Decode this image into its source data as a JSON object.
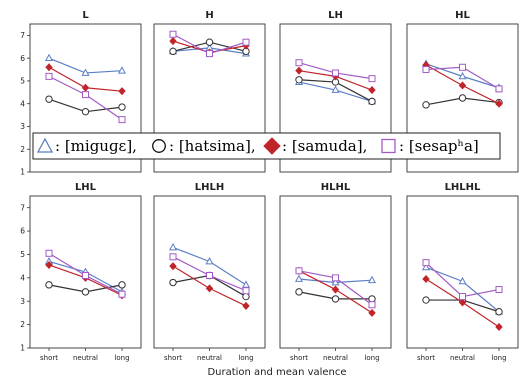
{
  "chart_data": {
    "type": "line",
    "xlabel": "Duration and mean valence",
    "x_categories": [
      "short",
      "neutral",
      "long"
    ],
    "ylim": [
      1,
      7.5
    ],
    "yticks": [
      1,
      2,
      3,
      4,
      5,
      6,
      7
    ],
    "legend": {
      "placement": "center",
      "entries": [
        {
          "symbol": "△",
          "text": ": [miguɡɛ],"
        },
        {
          "symbol": "○",
          "text": ": [hatsima],"
        },
        {
          "symbol": "◆",
          "text": ": [samuda],"
        },
        {
          "symbol": "□",
          "text": ": [sesapʰa]"
        }
      ]
    },
    "series_styles": [
      {
        "name": "[miguɡɛ]",
        "color": "#5b7fc4",
        "marker": "triangle"
      },
      {
        "name": "[hatsima]",
        "color": "#333333",
        "marker": "circle"
      },
      {
        "name": "[samuda]",
        "color": "#c0252a",
        "marker": "diamond"
      },
      {
        "name": "[sesapʰa]",
        "color": "#a25bc4",
        "marker": "square"
      }
    ],
    "panels": [
      {
        "title": "L",
        "series": [
          {
            "name": "[miguɡɛ]",
            "values": [
              6.0,
              5.35,
              5.45
            ]
          },
          {
            "name": "[hatsima]",
            "values": [
              4.2,
              3.65,
              3.85
            ]
          },
          {
            "name": "[samuda]",
            "values": [
              5.6,
              4.7,
              4.55
            ]
          },
          {
            "name": "[sesapʰa]",
            "values": [
              5.2,
              4.4,
              3.3
            ]
          }
        ]
      },
      {
        "title": "H",
        "series": [
          {
            "name": "[miguɡɛ]",
            "values": [
              6.3,
              6.45,
              6.2
            ]
          },
          {
            "name": "[hatsima]",
            "values": [
              6.3,
              6.7,
              6.3
            ]
          },
          {
            "name": "[samuda]",
            "values": [
              6.75,
              6.25,
              6.55
            ]
          },
          {
            "name": "[sesapʰa]",
            "values": [
              7.05,
              6.2,
              6.7
            ]
          }
        ]
      },
      {
        "title": "LH",
        "series": [
          {
            "name": "[miguɡɛ]",
            "values": [
              4.95,
              4.6,
              4.1
            ]
          },
          {
            "name": "[hatsima]",
            "values": [
              5.05,
              4.95,
              4.1
            ]
          },
          {
            "name": "[samuda]",
            "values": [
              5.45,
              5.2,
              4.6
            ]
          },
          {
            "name": "[sesapʰa]",
            "values": [
              5.8,
              5.35,
              5.1
            ]
          }
        ]
      },
      {
        "title": "HL",
        "series": [
          {
            "name": "[miguɡɛ]",
            "values": [
              5.75,
              5.2,
              4.7
            ]
          },
          {
            "name": "[hatsima]",
            "values": [
              3.95,
              4.25,
              4.05
            ]
          },
          {
            "name": "[samuda]",
            "values": [
              5.7,
              4.8,
              4.0
            ]
          },
          {
            "name": "[sesapʰa]",
            "values": [
              5.5,
              5.6,
              4.65
            ]
          }
        ]
      },
      {
        "title": "LHL",
        "series": [
          {
            "name": "[miguɡɛ]",
            "values": [
              4.7,
              4.25,
              3.4
            ]
          },
          {
            "name": "[hatsima]",
            "values": [
              3.7,
              3.4,
              3.7
            ]
          },
          {
            "name": "[samuda]",
            "values": [
              4.55,
              4.0,
              3.25
            ]
          },
          {
            "name": "[sesapʰa]",
            "values": [
              5.05,
              4.1,
              3.3
            ]
          }
        ]
      },
      {
        "title": "LHLH",
        "series": [
          {
            "name": "[miguɡɛ]",
            "values": [
              5.3,
              4.7,
              3.7
            ]
          },
          {
            "name": "[hatsima]",
            "values": [
              3.8,
              4.1,
              3.2
            ]
          },
          {
            "name": "[samuda]",
            "values": [
              4.5,
              3.55,
              2.8
            ]
          },
          {
            "name": "[sesapʰa]",
            "values": [
              4.9,
              4.1,
              3.45
            ]
          }
        ]
      },
      {
        "title": "HLHL",
        "series": [
          {
            "name": "[miguɡɛ]",
            "values": [
              3.95,
              3.8,
              3.9
            ]
          },
          {
            "name": "[hatsima]",
            "values": [
              3.4,
              3.1,
              3.1
            ]
          },
          {
            "name": "[samuda]",
            "values": [
              4.3,
              3.5,
              2.5
            ]
          },
          {
            "name": "[sesapʰa]",
            "values": [
              4.3,
              4.0,
              2.85
            ]
          }
        ]
      },
      {
        "title": "LHLHL",
        "series": [
          {
            "name": "[miguɡɛ]",
            "values": [
              4.45,
              3.85,
              2.55
            ]
          },
          {
            "name": "[hatsima]",
            "values": [
              3.05,
              3.05,
              2.55
            ]
          },
          {
            "name": "[samuda]",
            "values": [
              3.95,
              2.95,
              1.9
            ]
          },
          {
            "name": "[sesapʰa]",
            "values": [
              4.65,
              3.2,
              3.5
            ]
          }
        ]
      }
    ]
  }
}
